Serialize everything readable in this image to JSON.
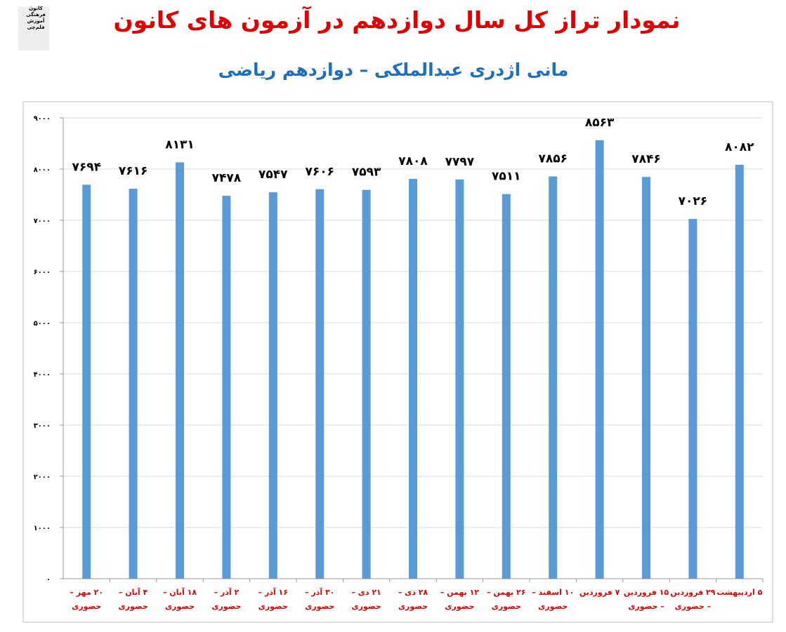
{
  "chart_data": {
    "type": "bar",
    "title": "نمودار تراز کل سال دوازدهم در آزمون های کانون",
    "subtitle": "مانی اژدری عبدالملکی – دوازدهم ریاضی",
    "logo": [
      "کانون",
      "فرهنگی",
      "آموزش",
      "قلم‌چی"
    ],
    "categories": [
      "۲۰ مهر – حضوری",
      "۴ آبان – حضوری",
      "۱۸ آبان – حضوری",
      "۲ آذر – حضوری",
      "۱۶ آذر – حضوری",
      "۳۰ آذر – حضوری",
      "۲۱ دی – حضوری",
      "۲۸ دی – حضوری",
      "۱۲ بهمن – حضوری",
      "۲۶ بهمن – حضوری",
      "۱۰ اسفند – حضوری",
      "۷ فروردین",
      "۱۵ فروردین – حضوری",
      "۲۹ فروردین – حضوری",
      "۵ اردیبهشت"
    ],
    "values": [
      7694,
      7616,
      8131,
      7478,
      7547,
      7606,
      7593,
      7808,
      7797,
      7511,
      7856,
      8563,
      7846,
      7026,
      8082
    ],
    "value_labels": [
      "۷۶۹۴",
      "۷۶۱۶",
      "۸۱۳۱",
      "۷۴۷۸",
      "۷۵۴۷",
      "۷۶۰۶",
      "۷۵۹۳",
      "۷۸۰۸",
      "۷۷۹۷",
      "۷۵۱۱",
      "۷۸۵۶",
      "۸۵۶۳",
      "۷۸۴۶",
      "۷۰۲۶",
      "۸۰۸۲"
    ],
    "color": "#5b9bd5",
    "ylim": [
      0,
      9000
    ],
    "yticks": [
      {
        "value": 0,
        "label": "۰"
      },
      {
        "value": 1000,
        "label": "۱۰۰۰"
      },
      {
        "value": 2000,
        "label": "۲۰۰۰"
      },
      {
        "value": 3000,
        "label": "۳۰۰۰"
      },
      {
        "value": 4000,
        "label": "۴۰۰۰"
      },
      {
        "value": 5000,
        "label": "۵۰۰۰"
      },
      {
        "value": 6000,
        "label": "۶۰۰۰"
      },
      {
        "value": 7000,
        "label": "۷۰۰۰"
      },
      {
        "value": 8000,
        "label": "۸۰۰۰"
      },
      {
        "value": 9000,
        "label": "۹۰۰۰"
      }
    ],
    "grid": true
  }
}
